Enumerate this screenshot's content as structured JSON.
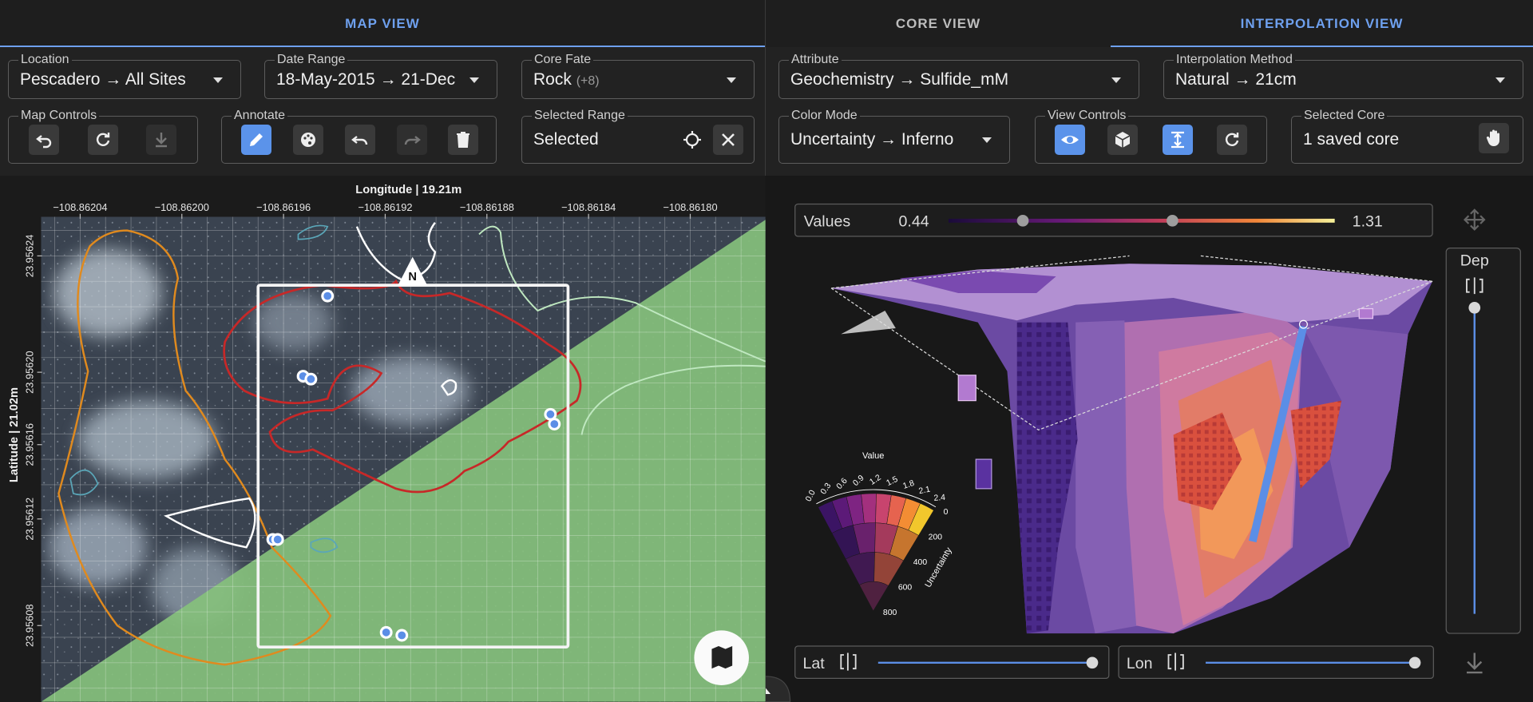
{
  "tabs": [
    "MAP VIEW",
    "CORE VIEW",
    "INTERPOLATION VIEW"
  ],
  "map_controls": {
    "location": {
      "label": "Location",
      "value": "Pescadero → All Sites"
    },
    "date_range": {
      "label": "Date Range",
      "value": "18-May-2015 → 21-Dec …"
    },
    "core_fate": {
      "label": "Core Fate",
      "value": "Rock",
      "extra": "(+8)"
    },
    "map_controls": {
      "label": "Map Controls"
    },
    "annotate": {
      "label": "Annotate"
    },
    "selected_range": {
      "label": "Selected Range",
      "value": "Selected"
    }
  },
  "interp_controls": {
    "attribute": {
      "label": "Attribute",
      "value": "Geochemistry → Sulfide_mM"
    },
    "interpolation_method": {
      "label": "Interpolation Method",
      "value": "Natural → 21cm"
    },
    "color_mode": {
      "label": "Color Mode",
      "value": "Uncertainty → Inferno"
    },
    "view_controls": {
      "label": "View Controls"
    },
    "selected_core": {
      "label": "Selected Core",
      "value": "1 saved core"
    }
  },
  "map": {
    "x_axis_title": "Longitude | 19.21m",
    "y_axis_title": "Latitude | 21.02m",
    "x_ticks": [
      "−108.86204",
      "−108.86200",
      "−108.86196",
      "−108.86192",
      "−108.86188",
      "−108.86184",
      "−108.86180"
    ],
    "y_ticks": [
      "23.95624",
      "23.95620",
      "23.95616",
      "23.95612",
      "23.95608"
    ],
    "north": "N"
  },
  "interp": {
    "values_label": "Values",
    "values_min": "0.44",
    "values_max": "1.31",
    "depth_label": "Dep",
    "lat_label": "Lat",
    "lon_label": "Lon",
    "legend": {
      "title": "Value",
      "value_ticks": [
        "0.0",
        "0.3",
        "0.6",
        "0.9",
        "1.2",
        "1.5",
        "1.8",
        "2.1",
        "2.4"
      ],
      "uncertainty_label": "Uncertainty",
      "uncertainty_ticks": [
        "0",
        "200",
        "400",
        "600",
        "800"
      ]
    }
  }
}
